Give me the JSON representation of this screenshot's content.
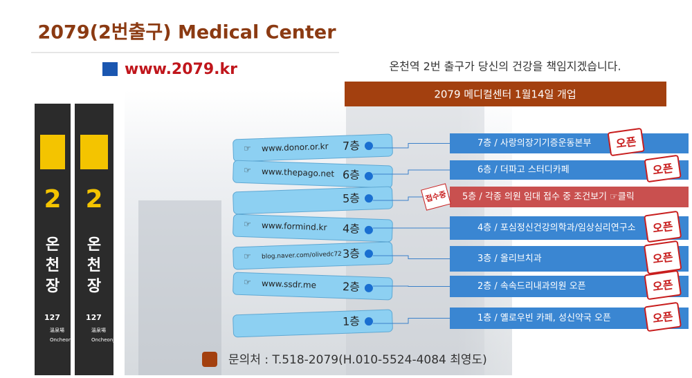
{
  "header": {
    "title": "2079(2번출구) Medical Center",
    "url": "www.2079.kr",
    "tagline": "온천역 2번 출구가 당신의 건강을 책임지겠습니다.",
    "banner": "2079 메디컬센터 1월14일 개업"
  },
  "station": {
    "line": "2",
    "name": [
      "온",
      "천",
      "장"
    ],
    "code": "127",
    "hanja": "溫泉場",
    "roman": "Oncheonjang"
  },
  "floors": [
    {
      "floor": "7층",
      "link": "www.donor.or.kr",
      "text": "7층 / 사랑의장기기증운동본부",
      "stamp": "오픈"
    },
    {
      "floor": "6층",
      "link": "www.thepago.net",
      "text": "6층 / 더파고 스터디카페",
      "stamp": "오픈"
    },
    {
      "floor": "5층",
      "text": "5층 / 각종 의원 임대 접수 중 조건보기 ☞클릭",
      "stamp": "접수중"
    },
    {
      "floor": "4층",
      "link": "www.formind.kr",
      "text": "4층 / 포심정신건강의학과/임상심리연구소",
      "stamp": "오픈"
    },
    {
      "floor": "3층",
      "link": "blog.naver.com/olivedc72",
      "text": "3층 / 올리브치과",
      "stamp": "오픈"
    },
    {
      "floor": "2층",
      "link": "www.ssdr.me",
      "text": "2층 / 속속드리내과의원 오픈",
      "stamp": "오픈"
    },
    {
      "floor": "1층",
      "text": "1층 / 옐로우빈 카페, 성신약국 오픈",
      "stamp": "오픈"
    }
  ],
  "contact": "문의처 : T.518-2079(H.010-5524-4084 최영도)"
}
